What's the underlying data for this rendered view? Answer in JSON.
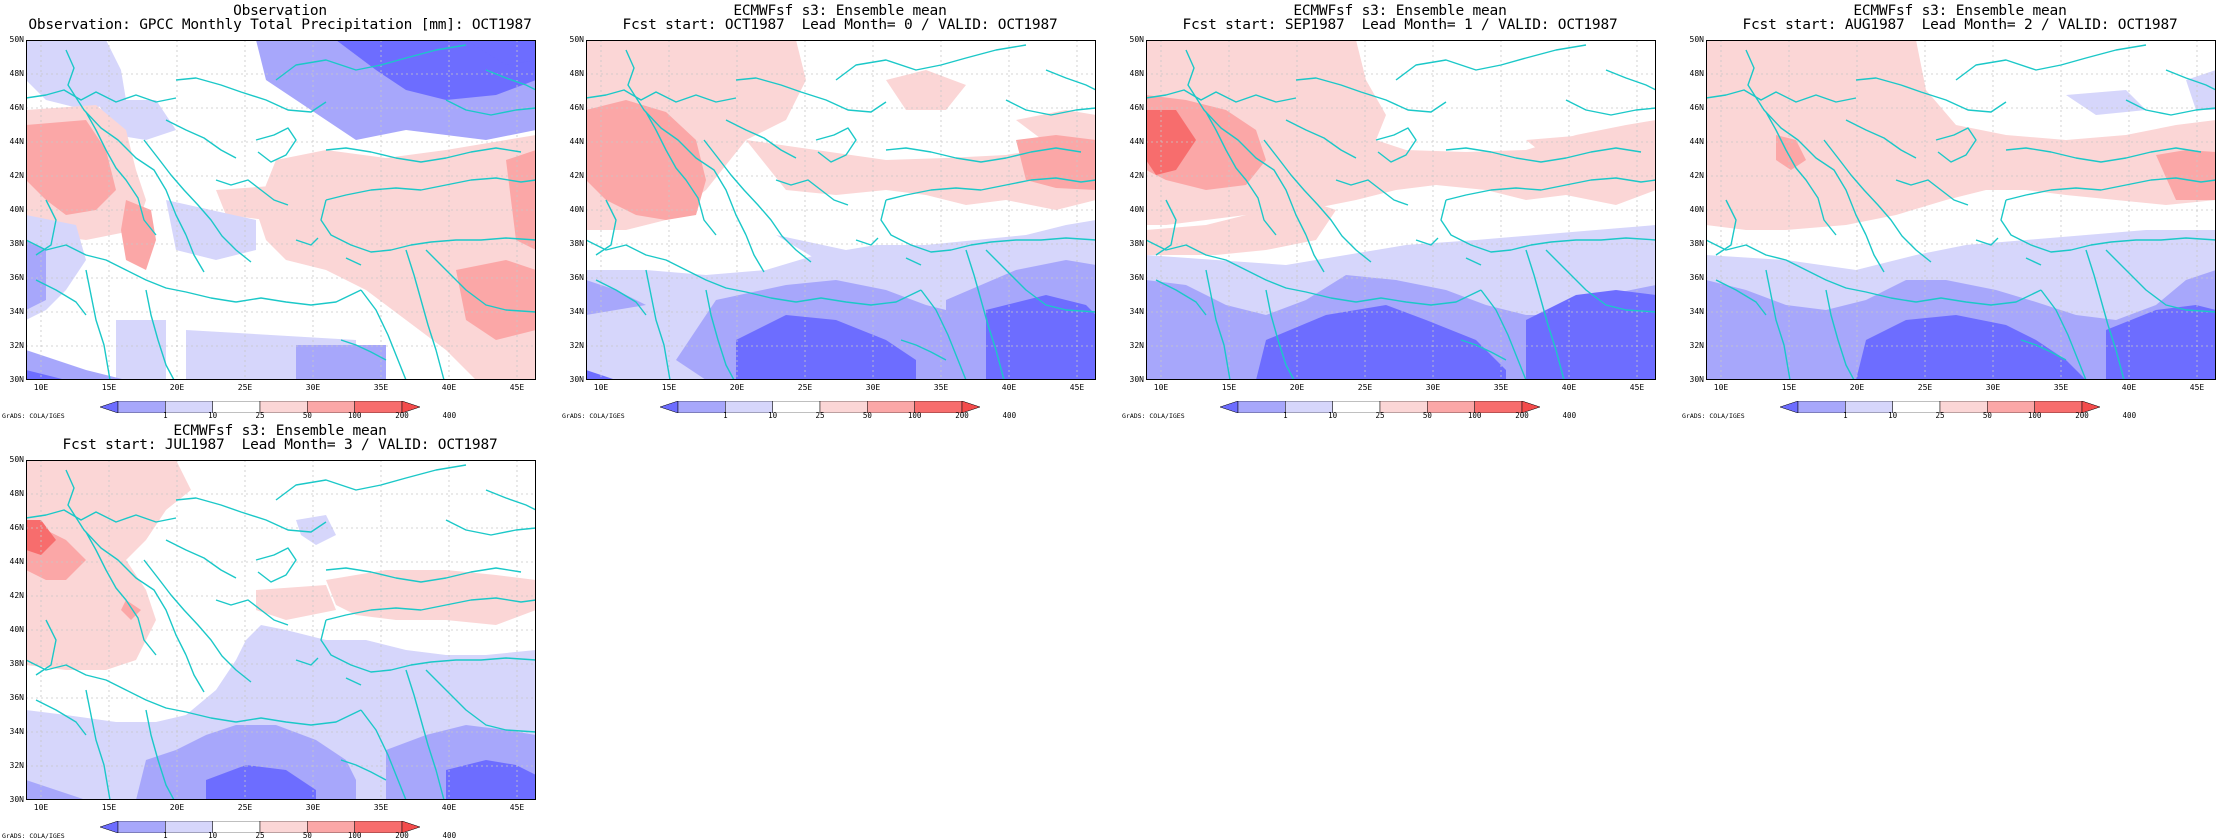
{
  "panels": [
    {
      "title1": "Observation",
      "title2": "Observation: GPCC Monthly Total Precipitation [mm]: OCT1987",
      "pattern": "obs"
    },
    {
      "title1": "ECMWFsf s3: Ensemble mean",
      "title2": "Fcst start: OCT1987  Lead Month= 0 / VALID: OCT1987",
      "pattern": "lead0"
    },
    {
      "title1": "ECMWFsf s3: Ensemble mean",
      "title2": "Fcst start: SEP1987  Lead Month= 1 / VALID: OCT1987",
      "pattern": "lead1"
    },
    {
      "title1": "ECMWFsf s3: Ensemble mean",
      "title2": "Fcst start: AUG1987  Lead Month= 2 / VALID: OCT1987",
      "pattern": "lead2"
    },
    {
      "title1": "ECMWFsf s3: Ensemble mean",
      "title2": "Fcst start: JUL1987  Lead Month= 3 / VALID: OCT1987",
      "pattern": "lead3"
    }
  ],
  "lat_labels": [
    "50N",
    "48N",
    "46N",
    "44N",
    "42N",
    "40N",
    "38N",
    "36N",
    "34N",
    "32N",
    "30N"
  ],
  "lon_labels": [
    "10E",
    "15E",
    "20E",
    "25E",
    "30E",
    "35E",
    "40E",
    "45E"
  ],
  "colorbar": {
    "labels": [
      "1",
      "10",
      "25",
      "50",
      "100",
      "200",
      "400"
    ],
    "colors": [
      "#6d6dff",
      "#a7a7fb",
      "#d6d6fb",
      "#ffffff",
      "#fbd6d6",
      "#fba7a7",
      "#f76d6d",
      "#f34b4b"
    ]
  },
  "credit": "GrADS: COLA/IGES",
  "colors": {
    "coast": "#1bc8c8",
    "grid": "#c8c8c8",
    "shade": [
      "#6d6dff",
      "#a7a7fb",
      "#d6d6fb",
      "#fbd6d6",
      "#fba7a7",
      "#f76d6d"
    ]
  }
}
